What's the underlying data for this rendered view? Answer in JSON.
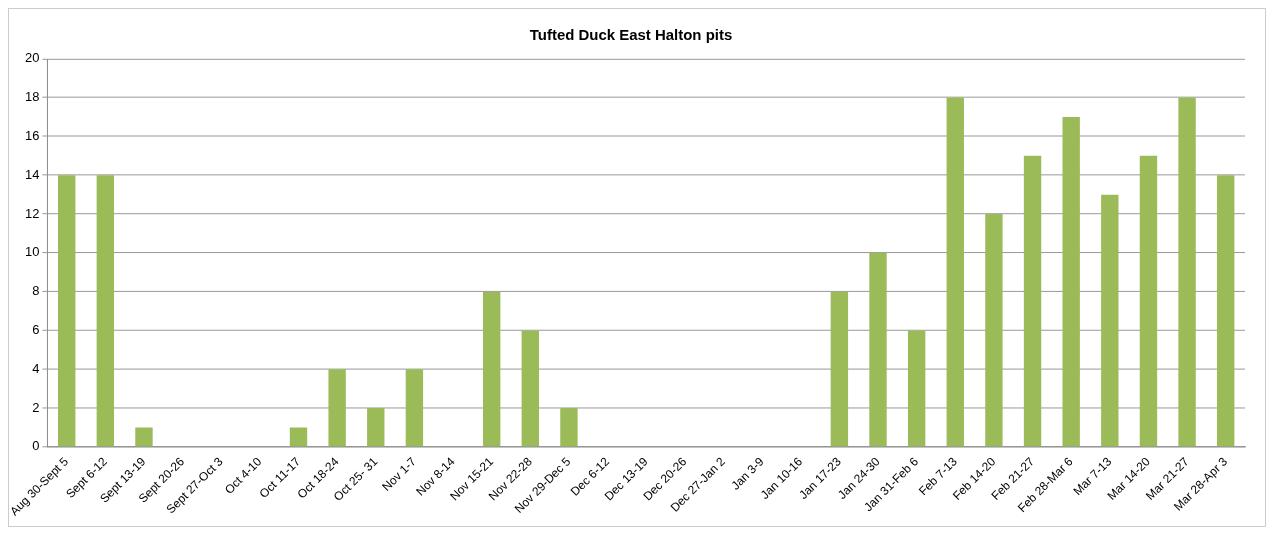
{
  "chart_data": {
    "type": "bar",
    "title": "Tufted Duck East Halton pits",
    "categories": [
      "Aug 30-Sept 5",
      "Sept 6-12",
      "Sept 13-19",
      "Sept 20-26",
      "Sept 27-Oct 3",
      "Oct 4-10",
      "Oct 11-17",
      "Oct 18-24",
      "Oct 25- 31",
      "Nov 1-7",
      "Nov 8-14",
      "Nov 15-21",
      "Nov 22-28",
      "Nov 29-Dec 5",
      "Dec 6-12",
      "Dec 13-19",
      "Dec 20-26",
      "Dec 27-Jan 2",
      "Jan 3-9",
      "Jan 10-16",
      "Jan 17-23",
      "Jan 24-30",
      "Jan 31-Feb 6",
      "Feb 7-13",
      "Feb 14-20",
      "Feb 21-27",
      "Feb 28-Mar 6",
      "Mar 7-13",
      "Mar 14-20",
      "Mar 21-27",
      "Mar 28-Apr 3"
    ],
    "values": [
      14,
      14,
      1,
      0,
      0,
      0,
      1,
      4,
      2,
      4,
      0,
      8,
      6,
      2,
      0,
      0,
      0,
      0,
      0,
      0,
      8,
      10,
      6,
      18,
      12,
      15,
      17,
      13,
      15,
      18,
      14
    ],
    "color": "#9bbb59",
    "ylim": [
      0,
      20
    ],
    "yticks": [
      0,
      2,
      4,
      6,
      8,
      10,
      12,
      14,
      16,
      18,
      20
    ],
    "grid": "y",
    "legend": false
  }
}
